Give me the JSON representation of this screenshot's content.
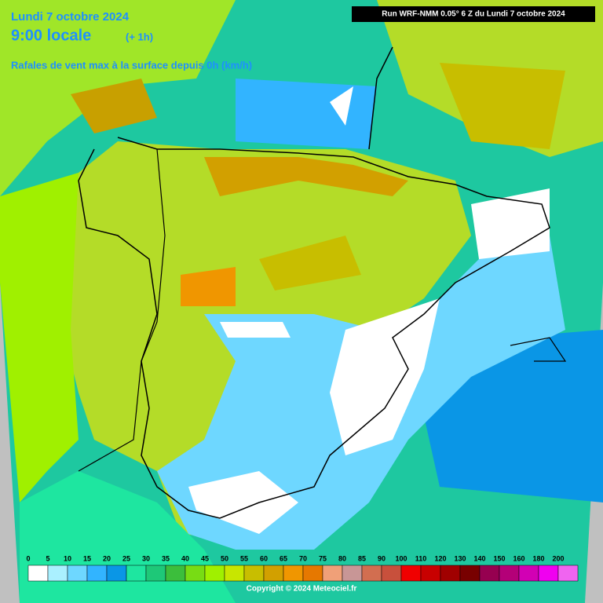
{
  "header": {
    "date": "Lundi 7 octobre 2024",
    "time": "9:00 locale",
    "offset": "(+ 1h)",
    "subtitle": "Rafales de vent max à la surface depuis 0h (km/h)",
    "run": "Run WRF-NMM 0.05° 6 Z du Lundi 7 octobre 2024"
  },
  "legend": {
    "labels": [
      "0",
      "5",
      "10",
      "15",
      "20",
      "25",
      "30",
      "35",
      "40",
      "45",
      "50",
      "55",
      "60",
      "65",
      "70",
      "75",
      "80",
      "85",
      "90",
      "100",
      "110",
      "120",
      "130",
      "140",
      "150",
      "160",
      "180",
      "200"
    ],
    "colors": [
      "#ffffff",
      "#aaf0ff",
      "#6ed7ff",
      "#32b4ff",
      "#0a96e6",
      "#1ee6a0",
      "#1ec878",
      "#3cbe3c",
      "#78dc14",
      "#a0f000",
      "#c8e600",
      "#c8be00",
      "#d2a000",
      "#f09600",
      "#e67800",
      "#f0a078",
      "#c89696",
      "#d26e50",
      "#c8503c",
      "#f00000",
      "#c80000",
      "#a00000",
      "#780000",
      "#960050",
      "#b40078",
      "#d200b4",
      "#f000f0",
      "#f064f0"
    ]
  },
  "footer": {
    "copyright": "Copyright © 2024 Meteociel.fr"
  }
}
